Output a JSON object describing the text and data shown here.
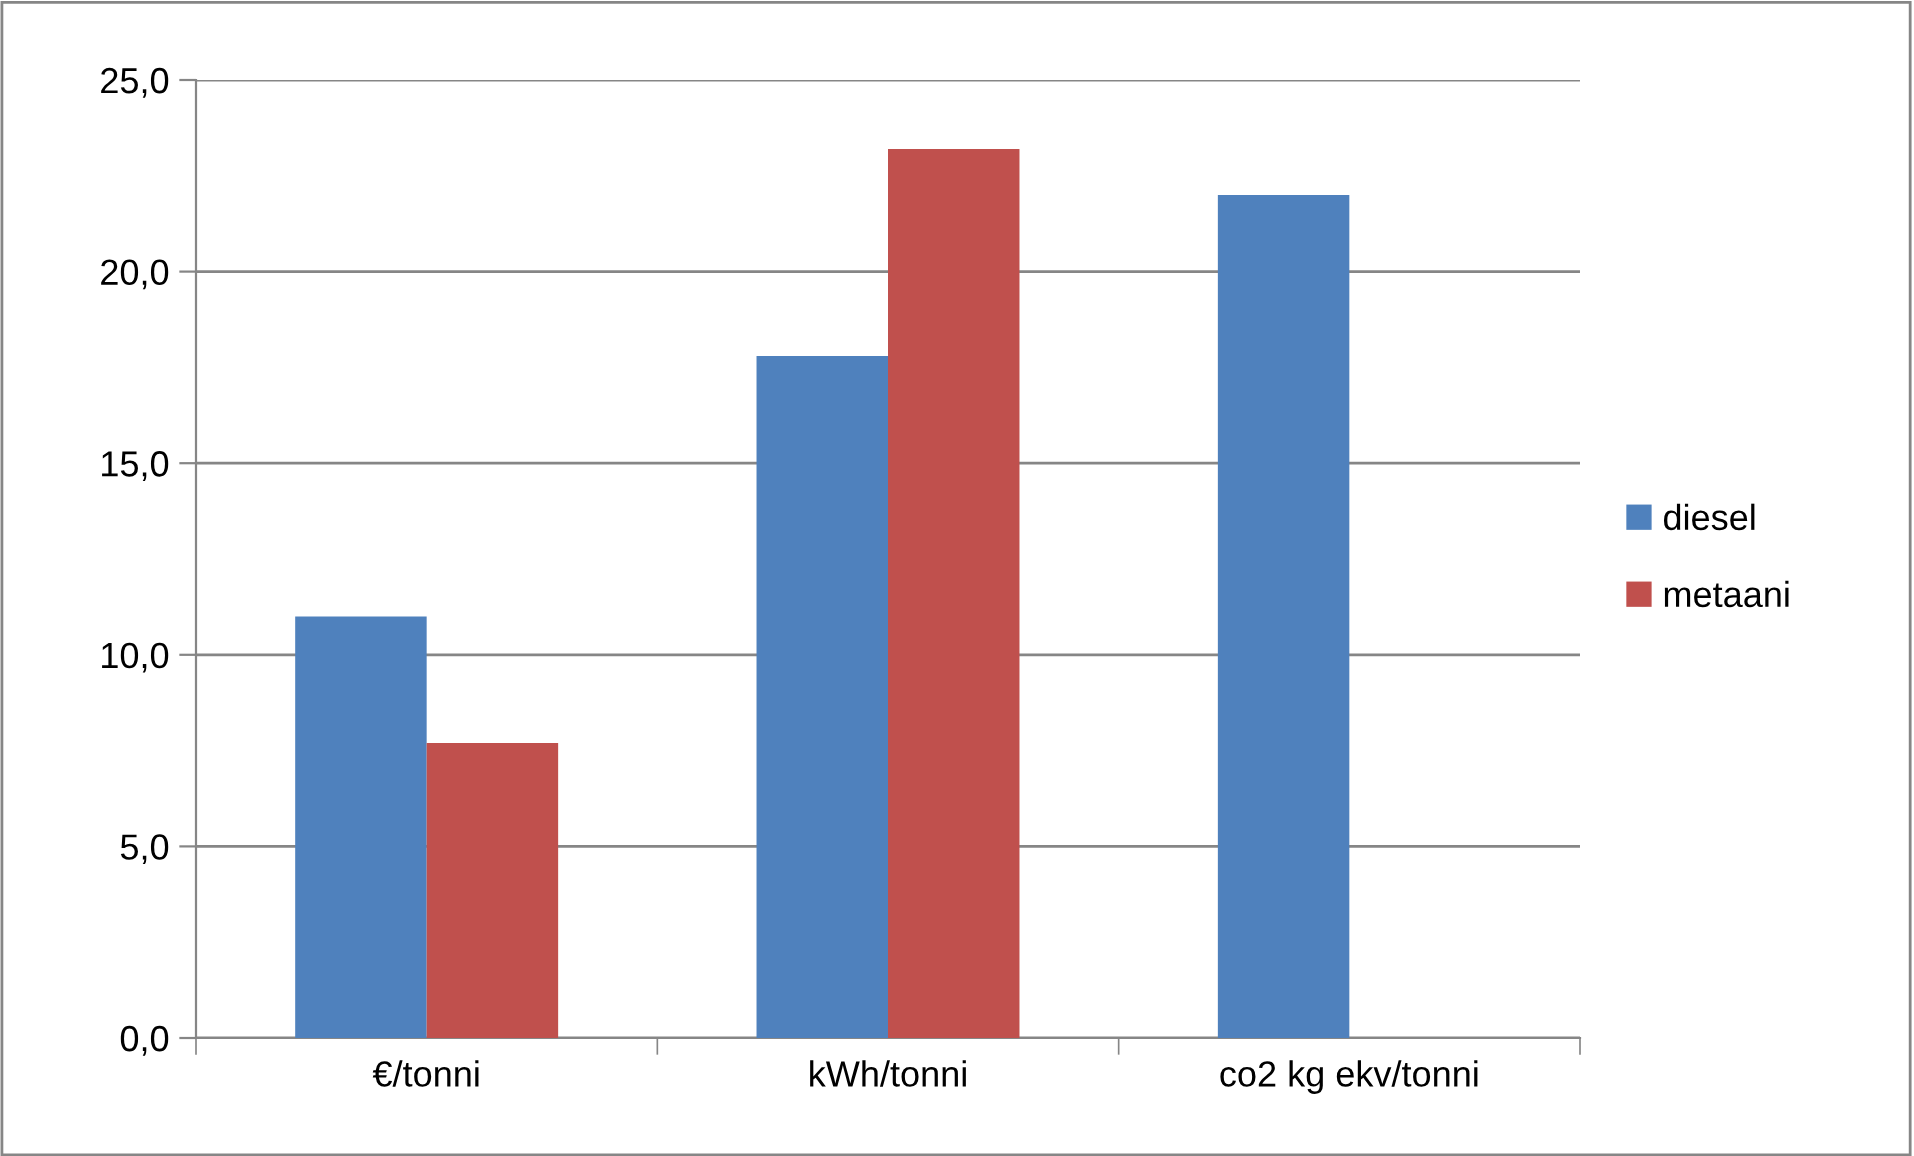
{
  "chart_data": {
    "type": "bar",
    "categories": [
      "€/tonni",
      "kWh/tonni",
      "co2 kg ekv/tonni"
    ],
    "series": [
      {
        "name": "diesel",
        "color": "#4f81bd",
        "values": [
          11.0,
          17.8,
          22.0
        ]
      },
      {
        "name": "metaani",
        "color": "#c0504d",
        "values": [
          7.7,
          23.2,
          null
        ]
      }
    ],
    "ylim": [
      0,
      25
    ],
    "yticks": [
      {
        "value": 0,
        "label": "0,0"
      },
      {
        "value": 5,
        "label": "5,0"
      },
      {
        "value": 10,
        "label": "10,0"
      },
      {
        "value": 15,
        "label": "15,0"
      },
      {
        "value": 20,
        "label": "20,0"
      },
      {
        "value": 25,
        "label": "25,0"
      }
    ],
    "grid": "y",
    "legend": "right"
  }
}
